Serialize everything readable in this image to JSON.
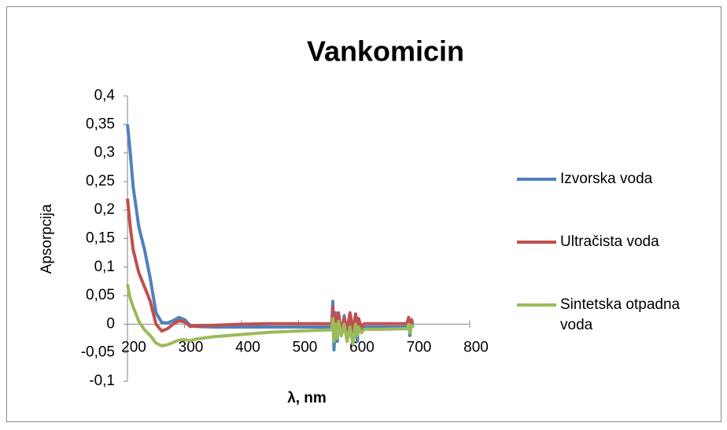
{
  "chart_data": {
    "type": "line",
    "title": "Vankomicin",
    "x_label": "λ, nm",
    "y_label": "Apsorpcija",
    "x": [
      200,
      205,
      210,
      220,
      230,
      240,
      250,
      260,
      270,
      280,
      290,
      300,
      310,
      320,
      350,
      400,
      450,
      500,
      550,
      558,
      560,
      562,
      565,
      568,
      570,
      575,
      580,
      585,
      590,
      595,
      600,
      603,
      605,
      610,
      615,
      650,
      690,
      693,
      695,
      698,
      700
    ],
    "series": [
      {
        "name": "Izvorska voda",
        "color": "#4f81bd",
        "values": [
          0.35,
          0.3,
          0.24,
          0.17,
          0.13,
          0.08,
          0.02,
          0.003,
          0.002,
          0.006,
          0.012,
          0.008,
          -0.002,
          -0.004,
          -0.005,
          -0.005,
          -0.005,
          -0.005,
          -0.005,
          -0.005,
          0.04,
          -0.045,
          0.02,
          -0.03,
          0.01,
          -0.02,
          0.015,
          -0.025,
          0.01,
          -0.02,
          0.015,
          -0.03,
          0.01,
          -0.01,
          -0.005,
          -0.005,
          -0.005,
          0.01,
          -0.02,
          0.005,
          -0.005
        ]
      },
      {
        "name": "Ultračista voda",
        "color": "#c0504d",
        "values": [
          0.22,
          0.17,
          0.13,
          0.09,
          0.065,
          0.04,
          0,
          -0.012,
          -0.008,
          0,
          0.006,
          0.004,
          -0.004,
          -0.003,
          -0.002,
          0,
          0.001,
          0.001,
          0.001,
          0.001,
          0.03,
          -0.02,
          0.015,
          -0.01,
          0.02,
          -0.015,
          0.01,
          -0.01,
          0.02,
          -0.01,
          0.018,
          -0.015,
          0.01,
          -0.005,
          0.001,
          0.001,
          0.001,
          0.012,
          -0.008,
          0.008,
          0.001
        ]
      },
      {
        "name": "Sintetska otpadna voda",
        "color": "#9bbb59",
        "values": [
          0.07,
          0.045,
          0.03,
          0.005,
          -0.01,
          -0.02,
          -0.033,
          -0.038,
          -0.036,
          -0.032,
          -0.028,
          -0.027,
          -0.029,
          -0.026,
          -0.022,
          -0.018,
          -0.014,
          -0.012,
          -0.01,
          -0.01,
          0.01,
          -0.03,
          0,
          -0.025,
          0.005,
          -0.02,
          0,
          -0.03,
          -0.005,
          -0.035,
          0,
          -0.02,
          -0.005,
          -0.015,
          -0.009,
          -0.009,
          -0.008,
          0,
          -0.015,
          -0.002,
          -0.007
        ]
      }
    ],
    "xlim": [
      200,
      800
    ],
    "xticks": [
      200,
      300,
      400,
      500,
      600,
      700,
      800
    ],
    "ylim": [
      -0.1,
      0.4
    ],
    "yticks": [
      {
        "value": -0.1,
        "label": "-0,1"
      },
      {
        "value": -0.05,
        "label": "-0,05"
      },
      0,
      {
        "value": 0.05,
        "label": "0,05"
      },
      {
        "value": 0.1,
        "label": "0,1"
      },
      {
        "value": 0.15,
        "label": "0,15"
      },
      {
        "value": 0.2,
        "label": "0,2"
      },
      {
        "value": 0.25,
        "label": "0,25"
      },
      {
        "value": 0.3,
        "label": "0,3"
      },
      {
        "value": 0.35,
        "label": "0,35"
      },
      {
        "value": 0.4,
        "label": "0,4"
      }
    ],
    "legend": "right"
  }
}
